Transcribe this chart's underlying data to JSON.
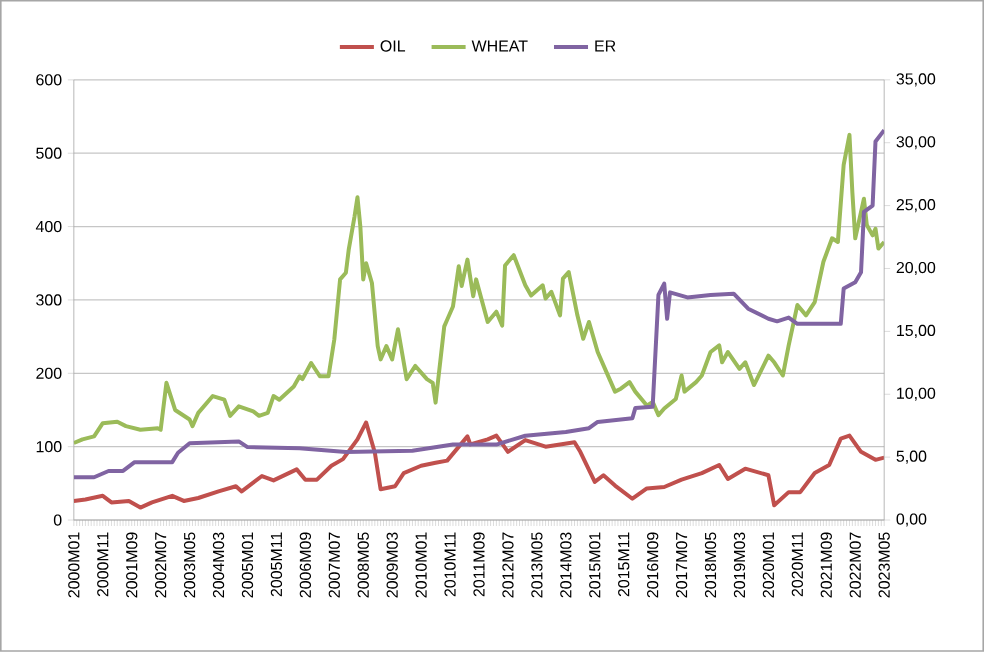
{
  "chart_data": {
    "type": "line",
    "legend": "top",
    "grid": "y",
    "line_style": "solid",
    "marker": "none",
    "xlim": [
      "2000-01",
      "2023-05"
    ],
    "xticks": [
      {
        "value": "2000-01",
        "label": "2000M01"
      },
      {
        "value": "2000-11",
        "label": "2000M11"
      },
      {
        "value": "2001-09",
        "label": "2001M09"
      },
      {
        "value": "2002-07",
        "label": "2002M07"
      },
      {
        "value": "2003-05",
        "label": "2003M05"
      },
      {
        "value": "2004-03",
        "label": "2004M03"
      },
      {
        "value": "2005-01",
        "label": "2005M01"
      },
      {
        "value": "2005-11",
        "label": "2005M11"
      },
      {
        "value": "2006-09",
        "label": "2006M09"
      },
      {
        "value": "2007-07",
        "label": "2007M07"
      },
      {
        "value": "2008-05",
        "label": "2008M05"
      },
      {
        "value": "2009-03",
        "label": "2009M03"
      },
      {
        "value": "2010-01",
        "label": "2010M01"
      },
      {
        "value": "2010-11",
        "label": "2010M11"
      },
      {
        "value": "2011-09",
        "label": "2011M09"
      },
      {
        "value": "2012-07",
        "label": "2012M07"
      },
      {
        "value": "2013-05",
        "label": "2013M05"
      },
      {
        "value": "2014-03",
        "label": "2014M03"
      },
      {
        "value": "2015-01",
        "label": "2015M01"
      },
      {
        "value": "2015-11",
        "label": "2015M11"
      },
      {
        "value": "2016-09",
        "label": "2016M09"
      },
      {
        "value": "2017-07",
        "label": "2017M07"
      },
      {
        "value": "2018-05",
        "label": "2018M05"
      },
      {
        "value": "2019-03",
        "label": "2019M03"
      },
      {
        "value": "2020-01",
        "label": "2020M01"
      },
      {
        "value": "2020-11",
        "label": "2020M11"
      },
      {
        "value": "2021-09",
        "label": "2021M09"
      },
      {
        "value": "2022-07",
        "label": "2022M07"
      },
      {
        "value": "2023-05",
        "label": "2023M05"
      }
    ],
    "ylim": [
      0,
      600
    ],
    "yticks": [
      0,
      100,
      200,
      300,
      400,
      500,
      600
    ],
    "y2lim": [
      0,
      35
    ],
    "y2ticks": [
      {
        "value": 0,
        "label": "0,00"
      },
      {
        "value": 5,
        "label": "5,00"
      },
      {
        "value": 10,
        "label": "10,00"
      },
      {
        "value": 15,
        "label": "15,00"
      },
      {
        "value": 20,
        "label": "20,00"
      },
      {
        "value": 25,
        "label": "25,00"
      },
      {
        "value": 30,
        "label": "30,00"
      },
      {
        "value": 35,
        "label": "35,00"
      }
    ],
    "series": [
      {
        "name": "OIL",
        "color": "#c0504d",
        "x": [
          "2000-01",
          "2000-05",
          "2000-11",
          "2001-02",
          "2001-08",
          "2001-12",
          "2002-04",
          "2002-11",
          "2003-03",
          "2003-08",
          "2004-03",
          "2004-09",
          "2004-11",
          "2005-06",
          "2005-10",
          "2006-06",
          "2006-09",
          "2007-01",
          "2007-06",
          "2007-10",
          "2008-03",
          "2008-06",
          "2008-09",
          "2008-11",
          "2009-04",
          "2009-07",
          "2010-01",
          "2010-06",
          "2010-10",
          "2011-05",
          "2011-06",
          "2011-12",
          "2012-03",
          "2012-07",
          "2013-01",
          "2013-08",
          "2014-06",
          "2014-08",
          "2015-01",
          "2015-04",
          "2015-08",
          "2016-02",
          "2016-07",
          "2017-01",
          "2017-07",
          "2018-02",
          "2018-08",
          "2018-11",
          "2019-05",
          "2020-01",
          "2020-03",
          "2020-08",
          "2020-12",
          "2021-05",
          "2021-10",
          "2022-02",
          "2022-05",
          "2022-09",
          "2023-02",
          "2023-05"
        ],
        "values": [
          26,
          28,
          33,
          24,
          26,
          17,
          24,
          33,
          26,
          30,
          39,
          46,
          39,
          60,
          54,
          69,
          55,
          55,
          74,
          83,
          110,
          133,
          92,
          42,
          46,
          64,
          74,
          78,
          81,
          114,
          103,
          110,
          115,
          93,
          109,
          100,
          106,
          93,
          52,
          61,
          47,
          29,
          43,
          45,
          55,
          64,
          75,
          56,
          70,
          61,
          20,
          38,
          38,
          64,
          75,
          111,
          115,
          93,
          82,
          85
        ]
      },
      {
        "name": "WHEAT",
        "color": "#9bbb59",
        "x": [
          "2000-01",
          "2000-04",
          "2000-08",
          "2000-11",
          "2001-04",
          "2001-07",
          "2001-12",
          "2002-06",
          "2002-07",
          "2002-09",
          "2002-12",
          "2003-05",
          "2003-06",
          "2003-08",
          "2004-01",
          "2004-05",
          "2004-07",
          "2004-10",
          "2005-03",
          "2005-05",
          "2005-08",
          "2005-10",
          "2005-12",
          "2006-05",
          "2006-07",
          "2006-08",
          "2006-11",
          "2007-02",
          "2007-05",
          "2007-07",
          "2007-09",
          "2007-11",
          "2007-12",
          "2008-02",
          "2008-03",
          "2008-04",
          "2008-05",
          "2008-06",
          "2008-08",
          "2008-10",
          "2008-11",
          "2009-01",
          "2009-03",
          "2009-05",
          "2009-08",
          "2009-11",
          "2010-03",
          "2010-05",
          "2010-06",
          "2010-09",
          "2010-10",
          "2010-12",
          "2011-02",
          "2011-03",
          "2011-05",
          "2011-07",
          "2011-08",
          "2011-12",
          "2012-03",
          "2012-05",
          "2012-06",
          "2012-09",
          "2013-01",
          "2013-03",
          "2013-07",
          "2013-08",
          "2013-10",
          "2014-01",
          "2014-02",
          "2014-04",
          "2014-07",
          "2014-09",
          "2014-11",
          "2015-02",
          "2015-05",
          "2015-08",
          "2015-10",
          "2016-01",
          "2016-03",
          "2016-07",
          "2016-09",
          "2016-11",
          "2017-01",
          "2017-05",
          "2017-07",
          "2017-08",
          "2017-12",
          "2018-02",
          "2018-05",
          "2018-08",
          "2018-09",
          "2018-11",
          "2019-03",
          "2019-05",
          "2019-08",
          "2020-01",
          "2020-03",
          "2020-06",
          "2020-08",
          "2020-11",
          "2021-02",
          "2021-05",
          "2021-08",
          "2021-11",
          "2022-01",
          "2022-03",
          "2022-05",
          "2022-06",
          "2022-07",
          "2022-10",
          "2022-11",
          "2023-01",
          "2023-02",
          "2023-03",
          "2023-05"
        ],
        "values": [
          105,
          110,
          114,
          132,
          134,
          128,
          123,
          125,
          123,
          187,
          150,
          137,
          128,
          146,
          169,
          164,
          142,
          155,
          148,
          142,
          146,
          169,
          164,
          182,
          196,
          192,
          214,
          196,
          196,
          246,
          328,
          337,
          369,
          414,
          440,
          400,
          328,
          350,
          323,
          237,
          219,
          237,
          219,
          260,
          192,
          210,
          192,
          187,
          160,
          264,
          273,
          291,
          346,
          319,
          355,
          305,
          328,
          270,
          284,
          265,
          347,
          361,
          320,
          306,
          320,
          302,
          311,
          279,
          329,
          338,
          279,
          247,
          270,
          229,
          202,
          175,
          179,
          188,
          175,
          156,
          161,
          143,
          152,
          165,
          197,
          175,
          188,
          197,
          229,
          238,
          215,
          229,
          206,
          215,
          184,
          224,
          215,
          197,
          238,
          293,
          279,
          297,
          352,
          384,
          379,
          484,
          525,
          447,
          384,
          438,
          402,
          388,
          397,
          370,
          379
        ]
      },
      {
        "name": "ER",
        "color": "#8064a2",
        "axis": "y2",
        "x": [
          "2000-01",
          "2000-08",
          "2001-01",
          "2001-06",
          "2001-10",
          "2002-11",
          "2003-01",
          "2003-05",
          "2004-10",
          "2005-01",
          "2006-07",
          "2007-11",
          "2009-10",
          "2010-12",
          "2012-03",
          "2013-01",
          "2014-03",
          "2014-11",
          "2015-02",
          "2016-02",
          "2016-03",
          "2016-09",
          "2016-11",
          "2017-01",
          "2017-02",
          "2017-03",
          "2017-09",
          "2018-05",
          "2019-01",
          "2019-06",
          "2020-01",
          "2020-04",
          "2020-08",
          "2020-11",
          "2022-02",
          "2022-03",
          "2022-07",
          "2022-09",
          "2022-10",
          "2023-01",
          "2023-02",
          "2023-05"
        ],
        "values": [
          3.4,
          3.4,
          3.9,
          3.9,
          4.6,
          4.6,
          5.35,
          6.1,
          6.25,
          5.8,
          5.7,
          5.4,
          5.5,
          6.0,
          6.0,
          6.7,
          7.0,
          7.3,
          7.8,
          8.1,
          8.9,
          9.0,
          17.9,
          18.8,
          16.0,
          18.1,
          17.7,
          17.9,
          18.0,
          16.8,
          16.0,
          15.8,
          16.1,
          15.6,
          15.6,
          18.4,
          18.9,
          19.7,
          24.5,
          25.0,
          30.1,
          31.0
        ]
      }
    ]
  }
}
